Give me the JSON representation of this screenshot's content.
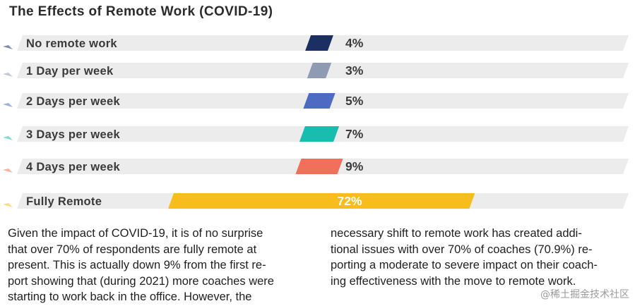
{
  "chart_data": {
    "type": "bar",
    "title": "The Effects of Remote Work (COVID-19)",
    "categories": [
      "No remote work",
      "1 Day per week",
      "2 Days per week",
      "3 Days per week",
      "4 Days per week",
      "Fully Remote"
    ],
    "values": [
      4,
      3,
      5,
      7,
      9,
      72
    ],
    "value_labels": [
      "4%",
      "3%",
      "5%",
      "7%",
      "9%",
      "72%"
    ],
    "unit": "%",
    "xlim": [
      0,
      100
    ],
    "colors": [
      "#1b2f63",
      "#8e9bb2",
      "#4e6bc3",
      "#19bdb0",
      "#f0705a",
      "#f6bd1d"
    ],
    "track_color": "#ececec",
    "label_color": "#3a3a3a"
  },
  "paragraph": {
    "col1": [
      "Given the impact of COVID-19, it is of no surprise",
      "that over 70% of respondents are fully remote at",
      "present. This is actually down 9% from the first re-",
      "port showing that (during 2021) more coaches were",
      "starting to work back in the office. However, the"
    ],
    "col2": [
      "necessary shift to remote work has created addi-",
      "tional issues with over 70% of coaches (70.9%) re-",
      "porting a moderate to severe impact on their coach-",
      "ing effectiveness with the move to remote work."
    ]
  },
  "watermark": "@稀土掘金技术社区"
}
